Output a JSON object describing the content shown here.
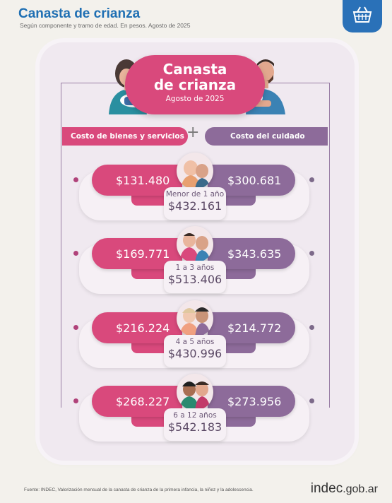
{
  "header": {
    "title": "Canasta de crianza",
    "subtitle": "Según componente y tramo de edad. En pesos. Agosto de 2025",
    "badge_icon": "basket-icon"
  },
  "card": {
    "title_line1": "Canasta",
    "title_line2": "de crianza",
    "date": "Agosto de 2025",
    "left_category": "Costo de bienes y servicios",
    "plus": "+",
    "right_category": "Costo del cuidado"
  },
  "rows": [
    {
      "goods": "$131.480",
      "care": "$300.681",
      "age": "Menor de 1 año",
      "total": "$432.161"
    },
    {
      "goods": "$169.771",
      "care": "$343.635",
      "age": "1 a 3 años",
      "total": "$513.406"
    },
    {
      "goods": "$216.224",
      "care": "$214.772",
      "age": "4 a 5 años",
      "total": "$430.996"
    },
    {
      "goods": "$268.227",
      "care": "$273.956",
      "age": "6 a 12 años",
      "total": "$542.183"
    }
  ],
  "footer": {
    "source": "Fuente: INDEC, Valorización mensual de la canasta de crianza de la primera infancia, la niñez y la adolescencia.",
    "brand_main": "indec",
    "brand_suffix": ".gob.ar"
  },
  "colors": {
    "pink": "#d9497c",
    "purple": "#8d6b9a",
    "title_blue": "#1f6fb3"
  }
}
